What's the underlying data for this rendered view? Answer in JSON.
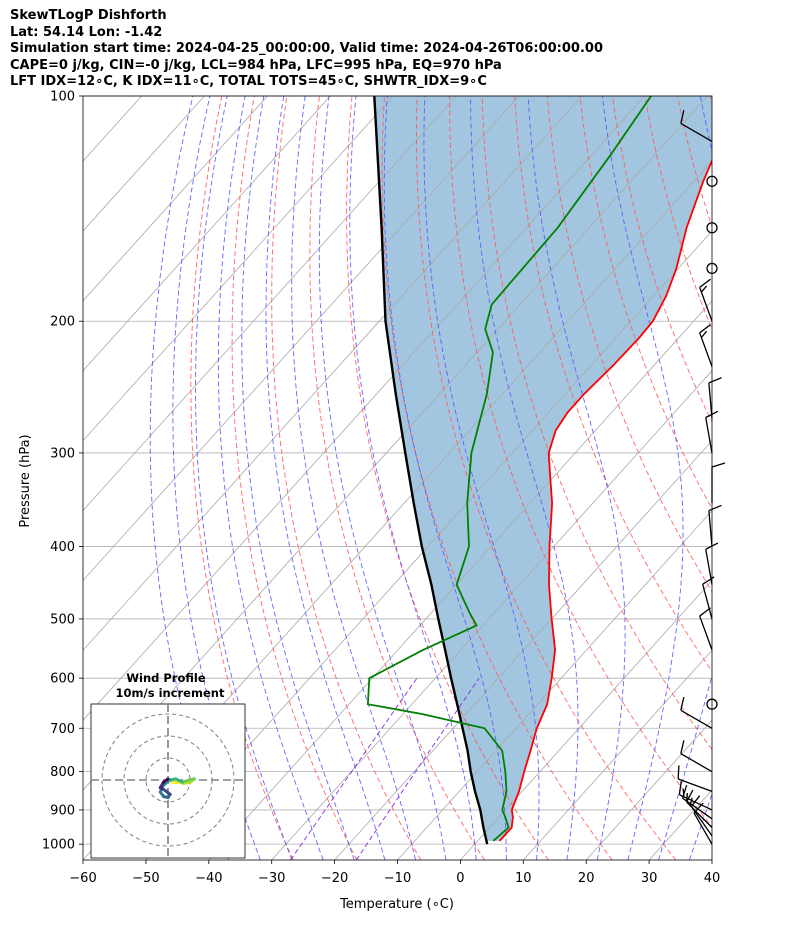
{
  "header": {
    "line1": "SkewTLogP Dishforth",
    "line2": "Lat: 54.14   Lon: -1.42",
    "line3": "Simulation start time: 2024-04-25_00:00:00, Valid time: 2024-04-26T06:00:00.00",
    "line4": "CAPE=0 j/kg, CIN=-0 j/kg, LCL=984 hPa, LFC=995 hPa, EQ=970 hPa",
    "line5": "LFT IDX=12∘C, K IDX=11∘C, TOTAL TOTS=45∘C, SHWTR_IDX=9∘C"
  },
  "hodograph": {
    "title_line1": "Wind Profile",
    "title_line2": "10m/s increment"
  },
  "chart_data": {
    "type": "skewt",
    "xlabel": "Temperature (∘C)",
    "ylabel": "Pressure (hPa)",
    "xlim": [
      -60,
      40
    ],
    "ylim": [
      1050,
      100
    ],
    "y_scale": "log",
    "x_ticks": [
      "−60",
      "−50",
      "−40",
      "−30",
      "−20",
      "−10",
      "0",
      "10",
      "20",
      "30",
      "40"
    ],
    "y_ticks": [
      "100",
      "200",
      "300",
      "400",
      "500",
      "600",
      "700",
      "800",
      "900",
      "1000"
    ],
    "grid": true,
    "colors": {
      "temperature": "#ff0000",
      "dewpoint": "#008000",
      "parcel": "#000000",
      "fill": "#a3c6e0",
      "dry_adiabats": "#ff5555",
      "moist_adiabats": "#5555ff",
      "mixing_ratio": "#8a2be2",
      "isotherms": "#aaaaaa"
    },
    "temperature": [
      {
        "p": 990,
        "t": 3.5
      },
      {
        "p": 950,
        "t": 3.5
      },
      {
        "p": 920,
        "t": 2.2
      },
      {
        "p": 900,
        "t": 1.0
      },
      {
        "p": 850,
        "t": -0.5
      },
      {
        "p": 800,
        "t": -2.5
      },
      {
        "p": 750,
        "t": -4.5
      },
      {
        "p": 700,
        "t": -6.7
      },
      {
        "p": 650,
        "t": -8.5
      },
      {
        "p": 600,
        "t": -11.5
      },
      {
        "p": 550,
        "t": -15.0
      },
      {
        "p": 500,
        "t": -20.0
      },
      {
        "p": 450,
        "t": -25.3
      },
      {
        "p": 400,
        "t": -30.7
      },
      {
        "p": 350,
        "t": -36.5
      },
      {
        "p": 320,
        "t": -41.0
      },
      {
        "p": 300,
        "t": -44.2
      },
      {
        "p": 280,
        "t": -46.3
      },
      {
        "p": 265,
        "t": -47.0
      },
      {
        "p": 250,
        "t": -47.0
      },
      {
        "p": 230,
        "t": -46.5
      },
      {
        "p": 210,
        "t": -46.3
      },
      {
        "p": 200,
        "t": -46.5
      },
      {
        "p": 185,
        "t": -48.0
      },
      {
        "p": 170,
        "t": -50.3
      },
      {
        "p": 150,
        "t": -54.5
      },
      {
        "p": 130,
        "t": -58.5
      },
      {
        "p": 115,
        "t": -61.5
      },
      {
        "p": 100,
        "t": -65.5
      }
    ],
    "dewpoint": [
      {
        "p": 990,
        "t": 2.5
      },
      {
        "p": 950,
        "t": 3.0
      },
      {
        "p": 920,
        "t": 1.0
      },
      {
        "p": 900,
        "t": -0.5
      },
      {
        "p": 850,
        "t": -2.5
      },
      {
        "p": 800,
        "t": -5.5
      },
      {
        "p": 750,
        "t": -9.0
      },
      {
        "p": 700,
        "t": -15.0
      },
      {
        "p": 670,
        "t": -27.0
      },
      {
        "p": 650,
        "t": -37.0
      },
      {
        "p": 600,
        "t": -40.5
      },
      {
        "p": 550,
        "t": -36.0
      },
      {
        "p": 510,
        "t": -31.0
      },
      {
        "p": 490,
        "t": -34.0
      },
      {
        "p": 450,
        "t": -40.0
      },
      {
        "p": 400,
        "t": -43.5
      },
      {
        "p": 350,
        "t": -50.0
      },
      {
        "p": 300,
        "t": -56.5
      },
      {
        "p": 250,
        "t": -62.5
      },
      {
        "p": 220,
        "t": -67.5
      },
      {
        "p": 205,
        "t": -72.0
      },
      {
        "p": 190,
        "t": -74.5
      },
      {
        "p": 150,
        "t": -75.0
      },
      {
        "p": 120,
        "t": -77.0
      },
      {
        "p": 100,
        "t": -79.0
      }
    ],
    "parcel": [
      {
        "p": 1000,
        "t": 2.0
      },
      {
        "p": 950,
        "t": -1.0
      },
      {
        "p": 900,
        "t": -4.0
      },
      {
        "p": 850,
        "t": -7.5
      },
      {
        "p": 800,
        "t": -11.0
      },
      {
        "p": 750,
        "t": -14.5
      },
      {
        "p": 700,
        "t": -18.5
      },
      {
        "p": 650,
        "t": -22.8
      },
      {
        "p": 600,
        "t": -27.5
      },
      {
        "p": 550,
        "t": -32.5
      },
      {
        "p": 500,
        "t": -38.0
      },
      {
        "p": 450,
        "t": -44.0
      },
      {
        "p": 400,
        "t": -51.0
      },
      {
        "p": 350,
        "t": -58.5
      },
      {
        "p": 300,
        "t": -67.0
      },
      {
        "p": 250,
        "t": -77.0
      },
      {
        "p": 200,
        "t": -89.0
      },
      {
        "p": 150,
        "t": -103.0
      },
      {
        "p": 100,
        "t": -123.0
      }
    ],
    "wind_barbs": [
      {
        "p": 1000,
        "dir": 330,
        "kt": 10
      },
      {
        "p": 975,
        "dir": 325,
        "kt": 12
      },
      {
        "p": 950,
        "dir": 315,
        "kt": 15
      },
      {
        "p": 925,
        "dir": 305,
        "kt": 15
      },
      {
        "p": 900,
        "dir": 295,
        "kt": 15
      },
      {
        "p": 850,
        "dir": 290,
        "kt": 12
      },
      {
        "p": 800,
        "dir": 300,
        "kt": 12
      },
      {
        "p": 700,
        "dir": 300,
        "kt": 12
      },
      {
        "p": 650,
        "dir": 0,
        "kt": 0
      },
      {
        "p": 550,
        "dir": 340,
        "kt": 10
      },
      {
        "p": 500,
        "dir": 345,
        "kt": 10
      },
      {
        "p": 450,
        "dir": 350,
        "kt": 10
      },
      {
        "p": 400,
        "dir": 355,
        "kt": 10
      },
      {
        "p": 350,
        "dir": 0,
        "kt": 10
      },
      {
        "p": 300,
        "dir": 350,
        "kt": 10
      },
      {
        "p": 270,
        "dir": 355,
        "kt": 10
      },
      {
        "p": 230,
        "dir": 340,
        "kt": 15
      },
      {
        "p": 200,
        "dir": 340,
        "kt": 15
      },
      {
        "p": 170,
        "dir": 0,
        "kt": 0
      },
      {
        "p": 150,
        "dir": 0,
        "kt": 0
      },
      {
        "p": 130,
        "dir": 0,
        "kt": 0
      },
      {
        "p": 115,
        "dir": 300,
        "kt": 10
      }
    ],
    "hodograph": {
      "rings_ms": [
        10,
        20,
        30
      ],
      "u": [
        2.0,
        5.0,
        7.0,
        10.0,
        12.0,
        9.5,
        6.5,
        3.5,
        1.0,
        -0.5,
        -2.5,
        -3.5,
        -2.0,
        0.0,
        1.0,
        -1.0,
        -2.5,
        -3.5,
        -2.0,
        0.0
      ],
      "v": [
        -1.0,
        -1.0,
        -1.5,
        -1.2,
        0.5,
        0.0,
        -1.0,
        0.5,
        0.0,
        -1.0,
        -3.0,
        -5.5,
        -7.5,
        -8.0,
        -6.5,
        -5.0,
        -4.0,
        -3.5,
        -1.0,
        0.5
      ]
    }
  }
}
